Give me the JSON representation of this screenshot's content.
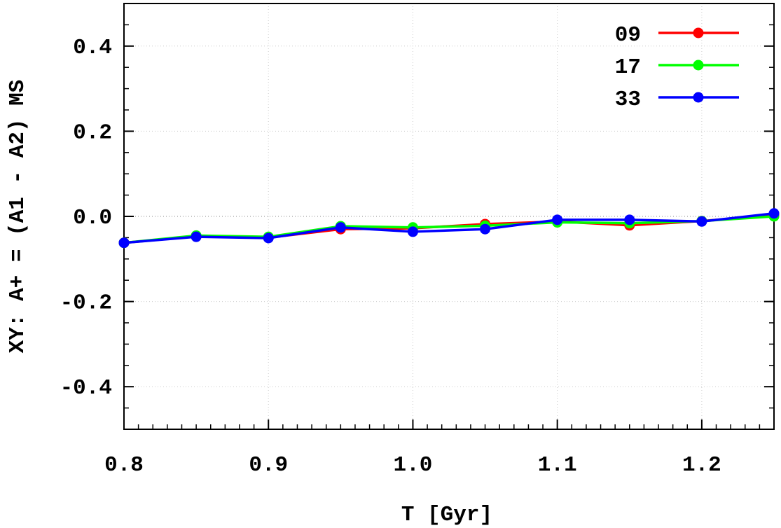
{
  "chart_data": {
    "type": "line",
    "title": "",
    "xlabel": "T [Gyr]",
    "ylabel": "XY: A+ = (A1 - A2) MS",
    "xlim": [
      0.8,
      1.25
    ],
    "ylim": [
      -0.5,
      0.5
    ],
    "xticks": [
      "0.8",
      "0.9",
      "1.0",
      "1.1",
      "1.2"
    ],
    "yticks": [
      "-0.4",
      "-0.2",
      "0.0",
      "0.2",
      "0.4"
    ],
    "grid": true,
    "legend": "top-right",
    "x": [
      0.8,
      0.85,
      0.9,
      0.95,
      1.0,
      1.05,
      1.1,
      1.15,
      1.2,
      1.25
    ],
    "series": [
      {
        "name": "09",
        "color": "#ff0000",
        "values": [
          -0.062,
          -0.047,
          -0.05,
          -0.03,
          -0.028,
          -0.018,
          -0.012,
          -0.021,
          -0.011,
          0.003
        ]
      },
      {
        "name": "17",
        "color": "#00ff00",
        "values": [
          -0.062,
          -0.045,
          -0.048,
          -0.023,
          -0.026,
          -0.022,
          -0.014,
          -0.016,
          -0.011,
          0.0
        ]
      },
      {
        "name": "33",
        "color": "#0000ff",
        "values": [
          -0.062,
          -0.048,
          -0.051,
          -0.026,
          -0.036,
          -0.03,
          -0.008,
          -0.008,
          -0.012,
          0.007
        ]
      }
    ]
  }
}
